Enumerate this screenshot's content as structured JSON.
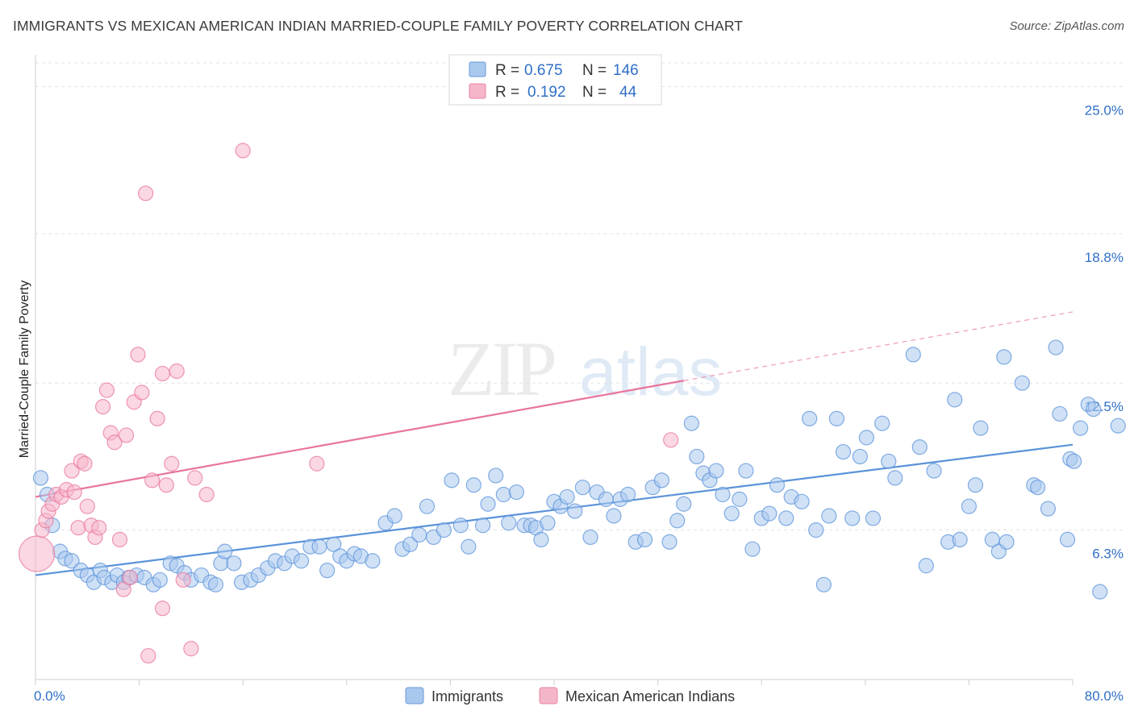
{
  "header": {
    "title": "IMMIGRANTS VS MEXICAN AMERICAN INDIAN MARRIED-COUPLE FAMILY POVERTY CORRELATION CHART",
    "source": "Source: ZipAtlas.com"
  },
  "watermark": {
    "zip": "ZIP",
    "atlas": "atlas"
  },
  "legend": {
    "rows": [
      {
        "r_label": "R =",
        "r_value": "0.675",
        "n_label": "N =",
        "n_value": "146",
        "color": "#a9c8ee"
      },
      {
        "r_label": "R =",
        "r_value": "0.192",
        "n_label": "N =",
        "n_value": "44",
        "color": "#f6b6ca"
      }
    ]
  },
  "bottom_legend": [
    {
      "label": "Immigrants",
      "color": "#a9c8ee"
    },
    {
      "label": "Mexican American Indians",
      "color": "#f6b6ca"
    }
  ],
  "chart_data": {
    "type": "scatter",
    "title": "IMMIGRANTS VS MEXICAN AMERICAN INDIAN MARRIED-COUPLE FAMILY POVERTY CORRELATION CHART",
    "ylabel": "Married-Couple Family Poverty",
    "xlabel": "",
    "xlim": [
      0,
      80
    ],
    "ylim": [
      0,
      26
    ],
    "x_tick_labels": [
      "0.0%",
      "80.0%"
    ],
    "y_tick_labels": [
      "6.3%",
      "12.5%",
      "18.8%",
      "25.0%"
    ],
    "y_ticks": [
      6.3,
      12.5,
      18.8,
      25.0
    ],
    "grid": true,
    "legend_position": "top-center",
    "series": [
      {
        "name": "Immigrants",
        "color": "#5b93d9",
        "fill": "#a9c8ee",
        "R": 0.675,
        "N": 146,
        "trend": {
          "x0": 0,
          "y0": 4.4,
          "x1": 80,
          "y1": 9.9
        },
        "points": [
          [
            0.4,
            8.5
          ],
          [
            0.9,
            7.8
          ],
          [
            1.3,
            6.5
          ],
          [
            1.9,
            5.4
          ],
          [
            2.3,
            5.1
          ],
          [
            2.8,
            5.0
          ],
          [
            3.5,
            4.6
          ],
          [
            4.0,
            4.4
          ],
          [
            4.5,
            4.1
          ],
          [
            5.0,
            4.6
          ],
          [
            5.3,
            4.3
          ],
          [
            5.9,
            4.1
          ],
          [
            6.3,
            4.4
          ],
          [
            6.8,
            4.1
          ],
          [
            7.2,
            4.3
          ],
          [
            7.8,
            4.4
          ],
          [
            8.4,
            4.3
          ],
          [
            9.1,
            4.0
          ],
          [
            9.6,
            4.2
          ],
          [
            10.4,
            4.9
          ],
          [
            10.9,
            4.8
          ],
          [
            11.5,
            4.5
          ],
          [
            12.0,
            4.2
          ],
          [
            12.8,
            4.4
          ],
          [
            13.5,
            4.1
          ],
          [
            13.9,
            4.0
          ],
          [
            14.3,
            4.9
          ],
          [
            14.6,
            5.4
          ],
          [
            15.3,
            4.9
          ],
          [
            15.9,
            4.1
          ],
          [
            16.6,
            4.2
          ],
          [
            17.2,
            4.4
          ],
          [
            17.9,
            4.7
          ],
          [
            18.5,
            5.0
          ],
          [
            19.2,
            4.9
          ],
          [
            19.8,
            5.2
          ],
          [
            20.5,
            5.0
          ],
          [
            21.2,
            5.6
          ],
          [
            21.9,
            5.6
          ],
          [
            22.5,
            4.6
          ],
          [
            23.0,
            5.7
          ],
          [
            23.5,
            5.2
          ],
          [
            24.0,
            5.0
          ],
          [
            24.6,
            5.3
          ],
          [
            25.1,
            5.2
          ],
          [
            26.0,
            5.0
          ],
          [
            27.0,
            6.6
          ],
          [
            27.7,
            6.9
          ],
          [
            28.3,
            5.5
          ],
          [
            28.9,
            5.7
          ],
          [
            29.6,
            6.1
          ],
          [
            30.2,
            7.3
          ],
          [
            30.7,
            6.0
          ],
          [
            31.5,
            6.3
          ],
          [
            32.1,
            8.4
          ],
          [
            32.8,
            6.5
          ],
          [
            33.4,
            5.6
          ],
          [
            33.8,
            8.2
          ],
          [
            34.5,
            6.5
          ],
          [
            34.9,
            7.4
          ],
          [
            35.5,
            8.6
          ],
          [
            36.1,
            7.8
          ],
          [
            36.5,
            6.6
          ],
          [
            37.1,
            7.9
          ],
          [
            37.7,
            6.5
          ],
          [
            38.2,
            6.5
          ],
          [
            38.6,
            6.4
          ],
          [
            39.0,
            5.9
          ],
          [
            39.5,
            6.6
          ],
          [
            40.0,
            7.5
          ],
          [
            40.5,
            7.3
          ],
          [
            41.0,
            7.7
          ],
          [
            41.6,
            7.1
          ],
          [
            42.2,
            8.1
          ],
          [
            42.8,
            6.0
          ],
          [
            43.3,
            7.9
          ],
          [
            44.0,
            7.6
          ],
          [
            44.6,
            6.9
          ],
          [
            45.1,
            7.6
          ],
          [
            45.7,
            7.8
          ],
          [
            46.3,
            5.8
          ],
          [
            47.0,
            5.9
          ],
          [
            47.6,
            8.1
          ],
          [
            48.3,
            8.4
          ],
          [
            48.9,
            5.8
          ],
          [
            49.5,
            6.7
          ],
          [
            50.0,
            7.4
          ],
          [
            50.6,
            10.8
          ],
          [
            51.0,
            9.4
          ],
          [
            51.5,
            8.7
          ],
          [
            52.0,
            8.4
          ],
          [
            52.5,
            8.8
          ],
          [
            53.0,
            7.8
          ],
          [
            53.7,
            7.0
          ],
          [
            54.3,
            7.6
          ],
          [
            54.8,
            8.8
          ],
          [
            55.3,
            5.5
          ],
          [
            56.0,
            6.8
          ],
          [
            56.6,
            7.0
          ],
          [
            57.2,
            8.2
          ],
          [
            57.9,
            6.8
          ],
          [
            58.3,
            7.7
          ],
          [
            59.1,
            7.5
          ],
          [
            59.7,
            11.0
          ],
          [
            60.2,
            6.3
          ],
          [
            60.8,
            4.0
          ],
          [
            61.2,
            6.9
          ],
          [
            61.8,
            11.0
          ],
          [
            62.3,
            9.6
          ],
          [
            63.0,
            6.8
          ],
          [
            63.6,
            9.4
          ],
          [
            64.1,
            10.2
          ],
          [
            64.6,
            6.8
          ],
          [
            65.3,
            10.8
          ],
          [
            65.8,
            9.2
          ],
          [
            66.3,
            8.5
          ],
          [
            67.7,
            13.7
          ],
          [
            68.2,
            9.8
          ],
          [
            68.7,
            4.8
          ],
          [
            69.3,
            8.8
          ],
          [
            70.4,
            5.8
          ],
          [
            70.9,
            11.8
          ],
          [
            71.3,
            5.9
          ],
          [
            72.0,
            7.3
          ],
          [
            72.5,
            8.2
          ],
          [
            72.9,
            10.6
          ],
          [
            73.8,
            5.9
          ],
          [
            74.3,
            5.4
          ],
          [
            74.7,
            13.6
          ],
          [
            74.9,
            5.8
          ],
          [
            76.1,
            12.5
          ],
          [
            77.0,
            8.2
          ],
          [
            77.3,
            8.1
          ],
          [
            78.1,
            7.2
          ],
          [
            78.7,
            14.0
          ],
          [
            79.0,
            11.2
          ],
          [
            79.6,
            5.9
          ],
          [
            79.8,
            9.3
          ],
          [
            80.1,
            9.2
          ],
          [
            80.6,
            10.6
          ],
          [
            81.2,
            11.6
          ],
          [
            81.6,
            11.4
          ],
          [
            82.1,
            3.7
          ],
          [
            83.5,
            10.7
          ]
        ]
      },
      {
        "name": "Mexican American Indians",
        "color": "#e8759c",
        "fill": "#f6b6ca",
        "R": 0.192,
        "N": 44,
        "trend": {
          "x0": 0,
          "y0": 7.7,
          "x1": 50,
          "y1": 12.6
        },
        "trend_dashed_to": {
          "x": 80,
          "y": 15.5
        },
        "points": [
          [
            0.1,
            5.3
          ],
          [
            0.5,
            6.3
          ],
          [
            0.8,
            6.7
          ],
          [
            1.0,
            7.1
          ],
          [
            1.3,
            7.4
          ],
          [
            1.6,
            7.8
          ],
          [
            2.0,
            7.7
          ],
          [
            2.4,
            8.0
          ],
          [
            2.8,
            8.8
          ],
          [
            3.0,
            7.9
          ],
          [
            3.3,
            6.4
          ],
          [
            3.5,
            9.2
          ],
          [
            3.8,
            9.1
          ],
          [
            4.0,
            7.3
          ],
          [
            4.3,
            6.5
          ],
          [
            4.6,
            6.0
          ],
          [
            4.9,
            6.4
          ],
          [
            5.2,
            11.5
          ],
          [
            5.5,
            12.2
          ],
          [
            5.8,
            10.4
          ],
          [
            6.1,
            10.0
          ],
          [
            6.5,
            5.9
          ],
          [
            6.8,
            3.8
          ],
          [
            7.0,
            10.3
          ],
          [
            7.3,
            4.3
          ],
          [
            7.6,
            11.7
          ],
          [
            7.9,
            13.7
          ],
          [
            8.2,
            12.1
          ],
          [
            8.5,
            20.5
          ],
          [
            8.7,
            1.0
          ],
          [
            9.0,
            8.4
          ],
          [
            9.4,
            11.0
          ],
          [
            9.8,
            3.0
          ],
          [
            10.1,
            8.2
          ],
          [
            10.5,
            9.1
          ],
          [
            10.9,
            13.0
          ],
          [
            11.4,
            4.2
          ],
          [
            12.0,
            1.3
          ],
          [
            12.3,
            8.5
          ],
          [
            13.2,
            7.8
          ],
          [
            16.0,
            22.3
          ],
          [
            21.7,
            9.1
          ],
          [
            49.0,
            10.1
          ],
          [
            9.8,
            12.9
          ]
        ]
      }
    ]
  }
}
